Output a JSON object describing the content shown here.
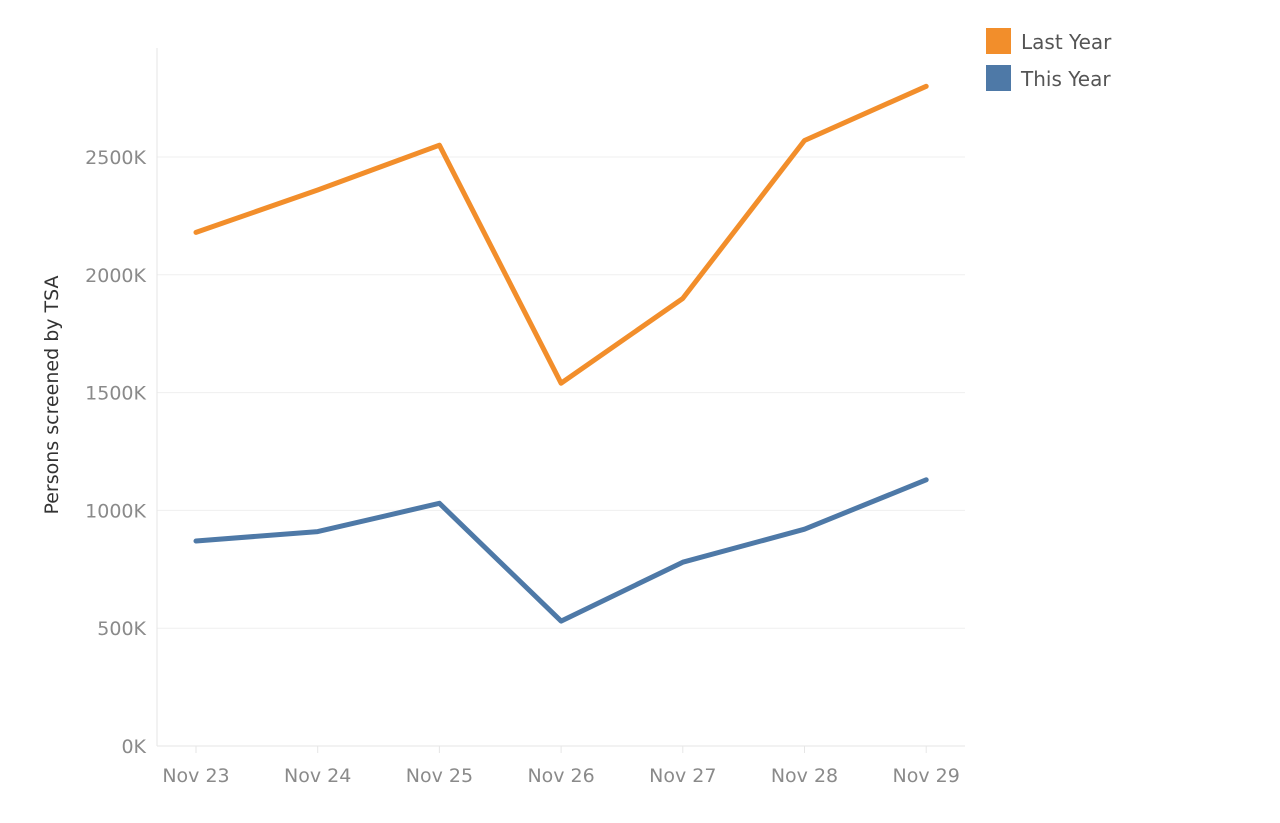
{
  "chart_data": {
    "type": "line",
    "title": "",
    "xlabel": "",
    "ylabel": "Persons screened by TSA",
    "categories": [
      "Nov 23",
      "Nov 24",
      "Nov 25",
      "Nov 26",
      "Nov 27",
      "Nov 28",
      "Nov 29"
    ],
    "y_ticks": [
      {
        "value": 0,
        "label": "0K"
      },
      {
        "value": 500000,
        "label": "500K"
      },
      {
        "value": 1000000,
        "label": "1000K"
      },
      {
        "value": 1500000,
        "label": "1500K"
      },
      {
        "value": 2000000,
        "label": "2000K"
      },
      {
        "value": 2500000,
        "label": "2500K"
      }
    ],
    "ylim": [
      0,
      2900000
    ],
    "grid": true,
    "legend_position": "top-right",
    "series": [
      {
        "name": "Last Year",
        "color": "#F28E2B",
        "values": [
          2180000,
          2360000,
          2550000,
          1540000,
          1900000,
          2570000,
          2800000
        ]
      },
      {
        "name": "This Year",
        "color": "#4E79A7",
        "values": [
          870000,
          910000,
          1030000,
          530000,
          780000,
          920000,
          1130000
        ]
      }
    ]
  }
}
